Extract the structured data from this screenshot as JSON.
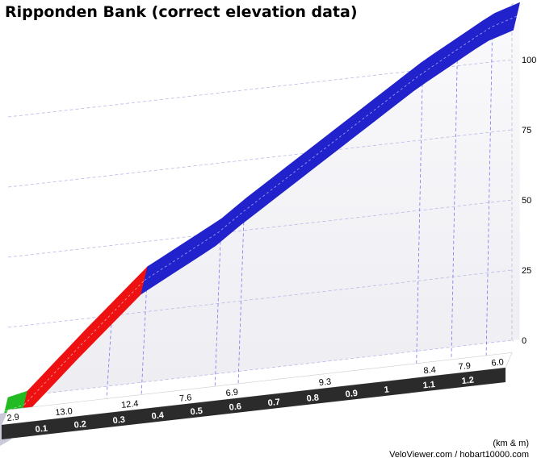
{
  "chart_data": {
    "type": "area",
    "title": "Ripponden Bank (correct elevation data)",
    "units_label": "(km & m)",
    "credit": "VeloViewer.com / hobart10000.com",
    "y_ticks": [
      0,
      25,
      50,
      75,
      100
    ],
    "ylim": [
      0,
      120
    ],
    "x_ticks": [
      0.1,
      0.2,
      0.3,
      0.4,
      0.5,
      0.6,
      0.7,
      0.8,
      0.9,
      1,
      1.1,
      1.2
    ],
    "x_tick_labels": [
      "0.1",
      "0.2",
      "0.3",
      "0.4",
      "0.5",
      "0.6",
      "0.7",
      "0.8",
      "0.9",
      "1",
      "1.1",
      "1.2"
    ],
    "xlim": [
      0,
      1.3
    ],
    "x": [
      0,
      0.05,
      0.2,
      0.36,
      0.55,
      0.61,
      1.07,
      1.16,
      1.25,
      1.32
    ],
    "y": [
      0,
      1.5,
      21,
      41,
      55,
      61,
      103,
      110,
      117,
      120
    ],
    "segments": [
      {
        "from": 0,
        "to": 0.05,
        "color": "#22bb22"
      },
      {
        "from": 0.05,
        "to": 0.36,
        "color": "#ee1111"
      },
      {
        "from": 0.36,
        "to": 1.32,
        "color": "#2222cc"
      }
    ],
    "gradients": [
      {
        "x": 0.035,
        "label": "2.9"
      },
      {
        "x": 0.16,
        "label": "13.0"
      },
      {
        "x": 0.33,
        "label": "12.4"
      },
      {
        "x": 0.48,
        "label": "7.6"
      },
      {
        "x": 0.6,
        "label": "6.9"
      },
      {
        "x": 0.84,
        "label": "9.3"
      },
      {
        "x": 1.11,
        "label": "8.4"
      },
      {
        "x": 1.2,
        "label": "7.9"
      },
      {
        "x": 1.285,
        "label": "6.0"
      }
    ],
    "grade_marks": [
      0.05,
      0.27,
      0.36,
      0.55,
      0.61,
      1.07,
      1.16,
      1.25
    ],
    "grid": true
  }
}
